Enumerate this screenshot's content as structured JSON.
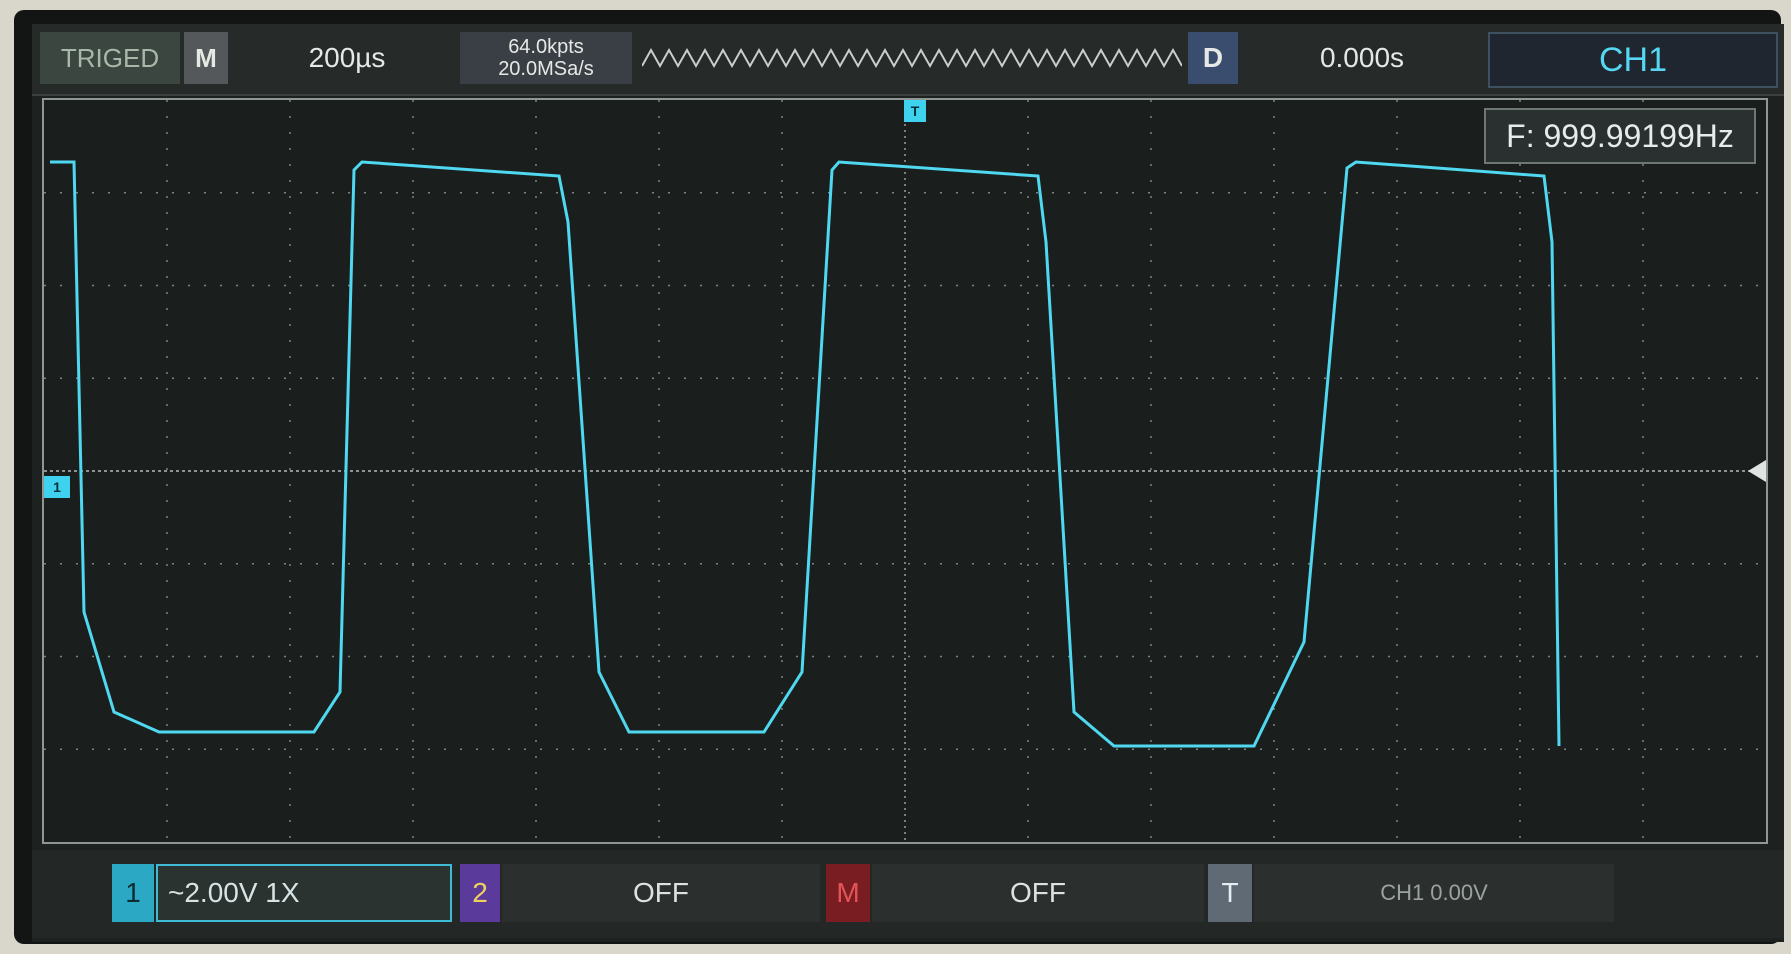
{
  "topbar": {
    "status": "TRIGED",
    "mode": "M",
    "timebase": "200µs",
    "memory_depth": "64.0kpts",
    "sample_rate": "20.0MSa/s",
    "delay_button": "D",
    "delay": "0.000s",
    "channel": "CH1"
  },
  "display": {
    "frequency": "F: 999.99199Hz",
    "trigger_marker": "T",
    "channel_marker": "1",
    "trace_color": "#4fd8f0"
  },
  "bottombar": {
    "ch1_number": "1",
    "ch1_setting": "~2.00V 1X",
    "ch2_number": "2",
    "ch2_state": "OFF",
    "math_number": "M",
    "math_state": "OFF",
    "trigger_number": "T",
    "trigger_setting": "CH1 0.00V"
  }
}
